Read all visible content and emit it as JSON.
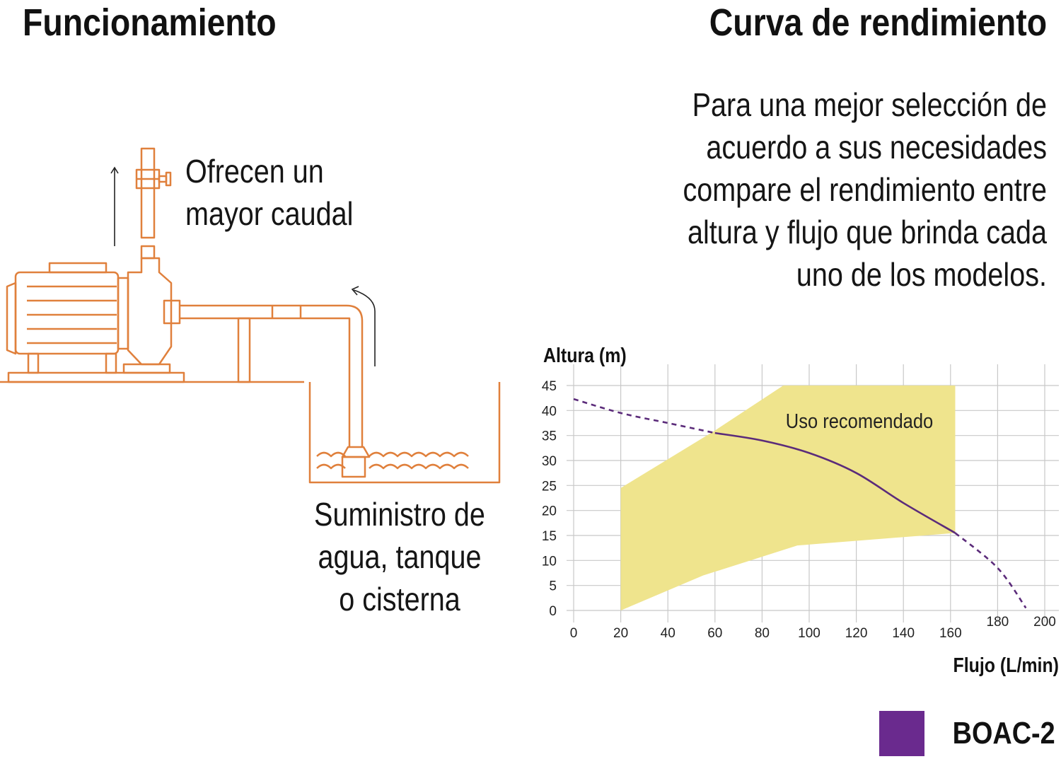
{
  "left": {
    "heading": "Funcionamiento",
    "caption_lines": [
      "Ofrecen un",
      "mayor caudal"
    ],
    "supply_lines": [
      "Suministro de",
      "agua, tanque",
      "o cisterna"
    ]
  },
  "right": {
    "heading": "Curva de rendimiento",
    "description_lines": [
      "Para una mejor selección de",
      "acuerdo a sus necesidades",
      "compare el rendimiento entre",
      "altura y flujo que brinda cada",
      "uno de los modelos."
    ]
  },
  "colors": {
    "illustration": "#e0803c",
    "zone": "#efe48d",
    "curve": "#5b2b7a",
    "grid": "#c8c8c8",
    "legend": "#6a2a8e"
  },
  "chart_data": {
    "type": "line",
    "xlabel": "Flujo (L/min)",
    "ylabel": "Altura (m)",
    "xlim": [
      0,
      200
    ],
    "ylim": [
      0,
      45
    ],
    "x_ticks": [
      0,
      20,
      40,
      60,
      80,
      100,
      120,
      140,
      160,
      180,
      200
    ],
    "y_ticks": [
      0,
      5,
      10,
      15,
      20,
      25,
      30,
      35,
      40,
      45
    ],
    "grid": true,
    "legend_position": "bottom-right",
    "recommended_zone": {
      "label": "Uso recomendado",
      "polygon": [
        [
          20,
          0
        ],
        [
          20,
          24.5
        ],
        [
          60,
          36
        ],
        [
          89,
          45
        ],
        [
          162,
          45
        ],
        [
          162,
          15.5
        ],
        [
          95,
          13
        ],
        [
          55,
          7
        ],
        [
          20,
          0
        ]
      ]
    },
    "series": [
      {
        "name": "BOAC-2",
        "points": [
          [
            0,
            42.3
          ],
          [
            20,
            39.5
          ],
          [
            40,
            37.5
          ],
          [
            60,
            35.5
          ],
          [
            80,
            34
          ],
          [
            100,
            31.5
          ],
          [
            120,
            27.5
          ],
          [
            140,
            21.5
          ],
          [
            162,
            15.5
          ],
          [
            180,
            8.5
          ],
          [
            192,
            0.5
          ]
        ],
        "solid_range": [
          60,
          162
        ]
      }
    ]
  }
}
